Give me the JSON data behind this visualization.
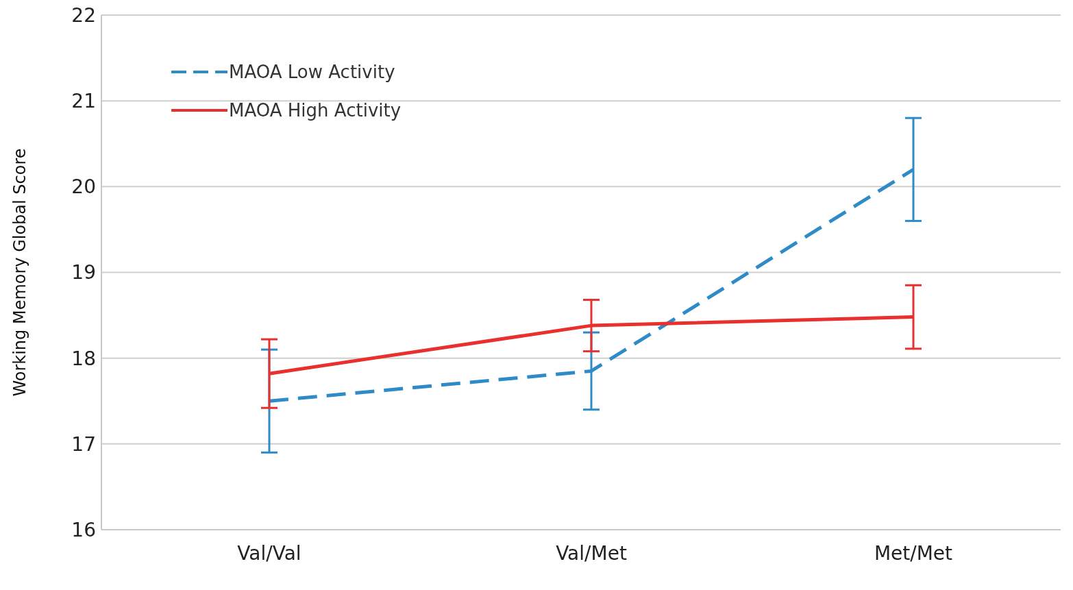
{
  "chart_data": {
    "type": "line",
    "ylabel": "Working Memory Global Score",
    "categories": [
      "Val/Val",
      "Val/Met",
      "Met/Met"
    ],
    "series": [
      {
        "name": "MAOA Low Activity",
        "color": "#2e8bc8",
        "values": [
          17.5,
          17.85,
          20.2
        ],
        "errors": [
          0.6,
          0.45,
          0.6
        ],
        "line_style": "dashed"
      },
      {
        "name": "MAOA High Activity",
        "color": "#e8312f",
        "values": [
          17.82,
          18.38,
          18.48
        ],
        "errors": [
          0.4,
          0.3,
          0.37
        ],
        "line_style": "solid"
      }
    ],
    "ylim": [
      16,
      22
    ],
    "yticks": [
      16,
      17,
      18,
      19,
      20,
      21,
      22
    ],
    "grid": "y",
    "legend": "top left",
    "marker": "none"
  }
}
